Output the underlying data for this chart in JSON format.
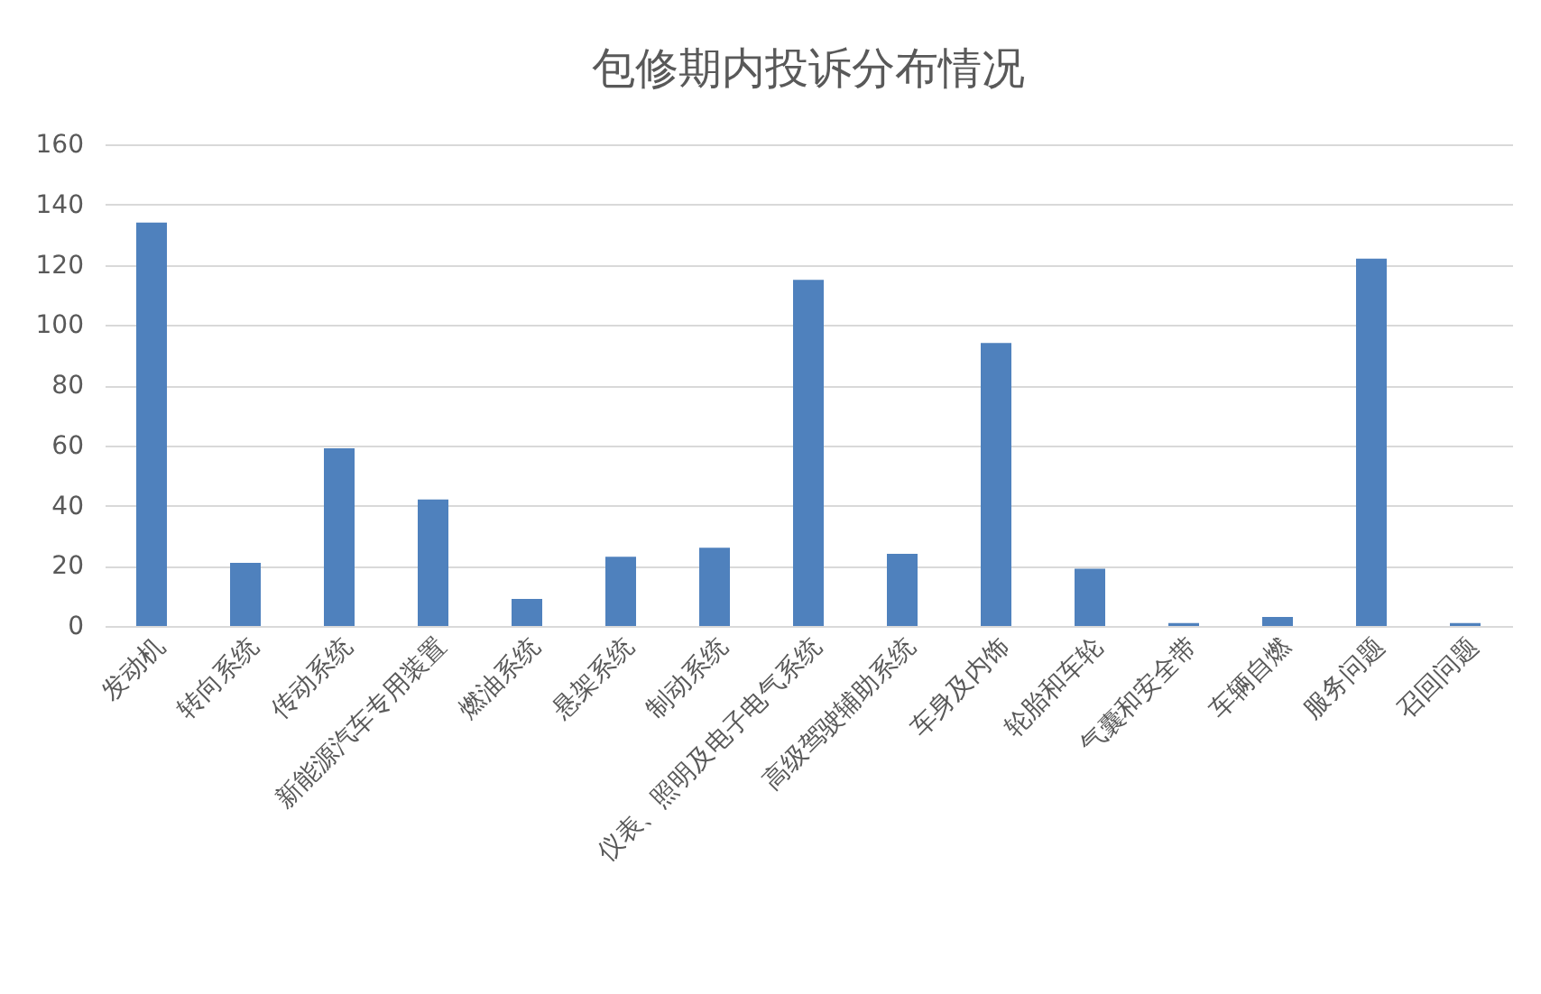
{
  "chart_data": {
    "type": "bar",
    "title": "包修期内投诉分布情况",
    "categories": [
      "发动机",
      "转向系统",
      "传动系统",
      "新能源汽车专用装置",
      "燃油系统",
      "悬架系统",
      "制动系统",
      "仪表、照明及电子电气系统",
      "高级驾驶辅助系统",
      "车身及内饰",
      "轮胎和车轮",
      "气囊和安全带",
      "车辆自燃",
      "服务问题",
      "召回问题"
    ],
    "values": [
      134,
      21,
      59,
      42,
      9,
      23,
      26,
      115,
      24,
      94,
      19,
      1,
      3,
      122,
      1
    ],
    "color": "#4f81bd",
    "ylim": [
      0,
      160
    ],
    "yticks": [
      0,
      20,
      40,
      60,
      80,
      100,
      120,
      140,
      160
    ],
    "grid": "y"
  }
}
